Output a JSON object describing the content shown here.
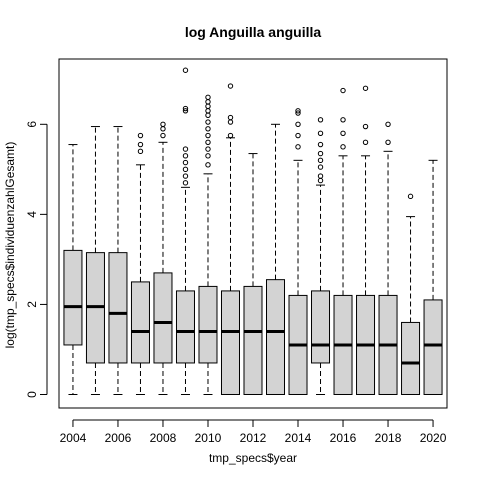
{
  "chart_data": {
    "type": "boxplot",
    "title": "log Anguilla anguilla",
    "xlabel": "tmp_specs$year",
    "ylabel": "log(tmp_specs$individuenzahlGesamt)",
    "ylim": [
      -0.3,
      7.45
    ],
    "yticks": [
      0,
      2,
      4,
      6
    ],
    "box_fill": "#d3d3d3",
    "categories": [
      "2004",
      "2005",
      "2006",
      "2007",
      "2008",
      "2009",
      "2010",
      "2011",
      "2012",
      "2013",
      "2014",
      "2015",
      "2016",
      "2017",
      "2018",
      "2019",
      "2020"
    ],
    "xtick_labels": [
      "2004",
      "2006",
      "2008",
      "2010",
      "2012",
      "2014",
      "2016",
      "2018",
      "2020"
    ],
    "boxes": [
      {
        "year": "2004",
        "min": 0,
        "q1": 1.1,
        "median": 1.95,
        "q3": 3.2,
        "max": 5.55,
        "outliers": []
      },
      {
        "year": "2005",
        "min": 0,
        "q1": 0.7,
        "median": 1.95,
        "q3": 3.15,
        "max": 5.95,
        "outliers": []
      },
      {
        "year": "2006",
        "min": 0,
        "q1": 0.7,
        "median": 1.8,
        "q3": 3.15,
        "max": 5.95,
        "outliers": []
      },
      {
        "year": "2007",
        "min": 0,
        "q1": 0.7,
        "median": 1.4,
        "q3": 2.5,
        "max": 5.1,
        "outliers": [
          5.4,
          5.55,
          5.75
        ]
      },
      {
        "year": "2008",
        "min": 0,
        "q1": 0.7,
        "median": 1.6,
        "q3": 2.7,
        "max": 5.6,
        "outliers": [
          5.75,
          5.9,
          6.0
        ]
      },
      {
        "year": "2009",
        "min": 0,
        "q1": 0.7,
        "median": 1.4,
        "q3": 2.3,
        "max": 4.6,
        "outliers": [
          4.7,
          4.85,
          5.0,
          5.15,
          5.3,
          5.45,
          6.3,
          6.35,
          7.2
        ]
      },
      {
        "year": "2010",
        "min": 0,
        "q1": 0.7,
        "median": 1.4,
        "q3": 2.4,
        "max": 4.9,
        "outliers": [
          5.1,
          5.3,
          5.45,
          5.6,
          5.75,
          5.9,
          6.05,
          6.2,
          6.3,
          6.4,
          6.5,
          6.6
        ]
      },
      {
        "year": "2011",
        "min": 0,
        "q1": 0,
        "median": 1.4,
        "q3": 2.3,
        "max": 5.7,
        "outliers": [
          5.75,
          6.05,
          6.15,
          6.85
        ]
      },
      {
        "year": "2012",
        "min": 0,
        "q1": 0,
        "median": 1.4,
        "q3": 2.4,
        "max": 5.35,
        "outliers": []
      },
      {
        "year": "2013",
        "min": 0,
        "q1": 0,
        "median": 1.4,
        "q3": 2.55,
        "max": 6.0,
        "outliers": []
      },
      {
        "year": "2014",
        "min": 0,
        "q1": 0,
        "median": 1.1,
        "q3": 2.2,
        "max": 5.2,
        "outliers": [
          5.5,
          5.75,
          6.0,
          6.25,
          6.3
        ]
      },
      {
        "year": "2015",
        "min": 0,
        "q1": 0.7,
        "median": 1.1,
        "q3": 2.3,
        "max": 4.65,
        "outliers": [
          4.75,
          4.85,
          5.05,
          5.2,
          5.35,
          5.55,
          5.8,
          6.1
        ]
      },
      {
        "year": "2016",
        "min": 0,
        "q1": 0,
        "median": 1.1,
        "q3": 2.2,
        "max": 5.3,
        "outliers": [
          5.5,
          5.8,
          6.1,
          6.75
        ]
      },
      {
        "year": "2017",
        "min": 0,
        "q1": 0,
        "median": 1.1,
        "q3": 2.2,
        "max": 5.3,
        "outliers": [
          5.6,
          5.95,
          6.8
        ]
      },
      {
        "year": "2018",
        "min": 0,
        "q1": 0,
        "median": 1.1,
        "q3": 2.2,
        "max": 5.4,
        "outliers": [
          5.6,
          6.0
        ]
      },
      {
        "year": "2019",
        "min": 0,
        "q1": 0,
        "median": 0.7,
        "q3": 1.6,
        "max": 3.95,
        "outliers": [
          4.4
        ]
      },
      {
        "year": "2020",
        "min": 0,
        "q1": 0,
        "median": 1.1,
        "q3": 2.1,
        "max": 5.2,
        "outliers": []
      }
    ]
  }
}
